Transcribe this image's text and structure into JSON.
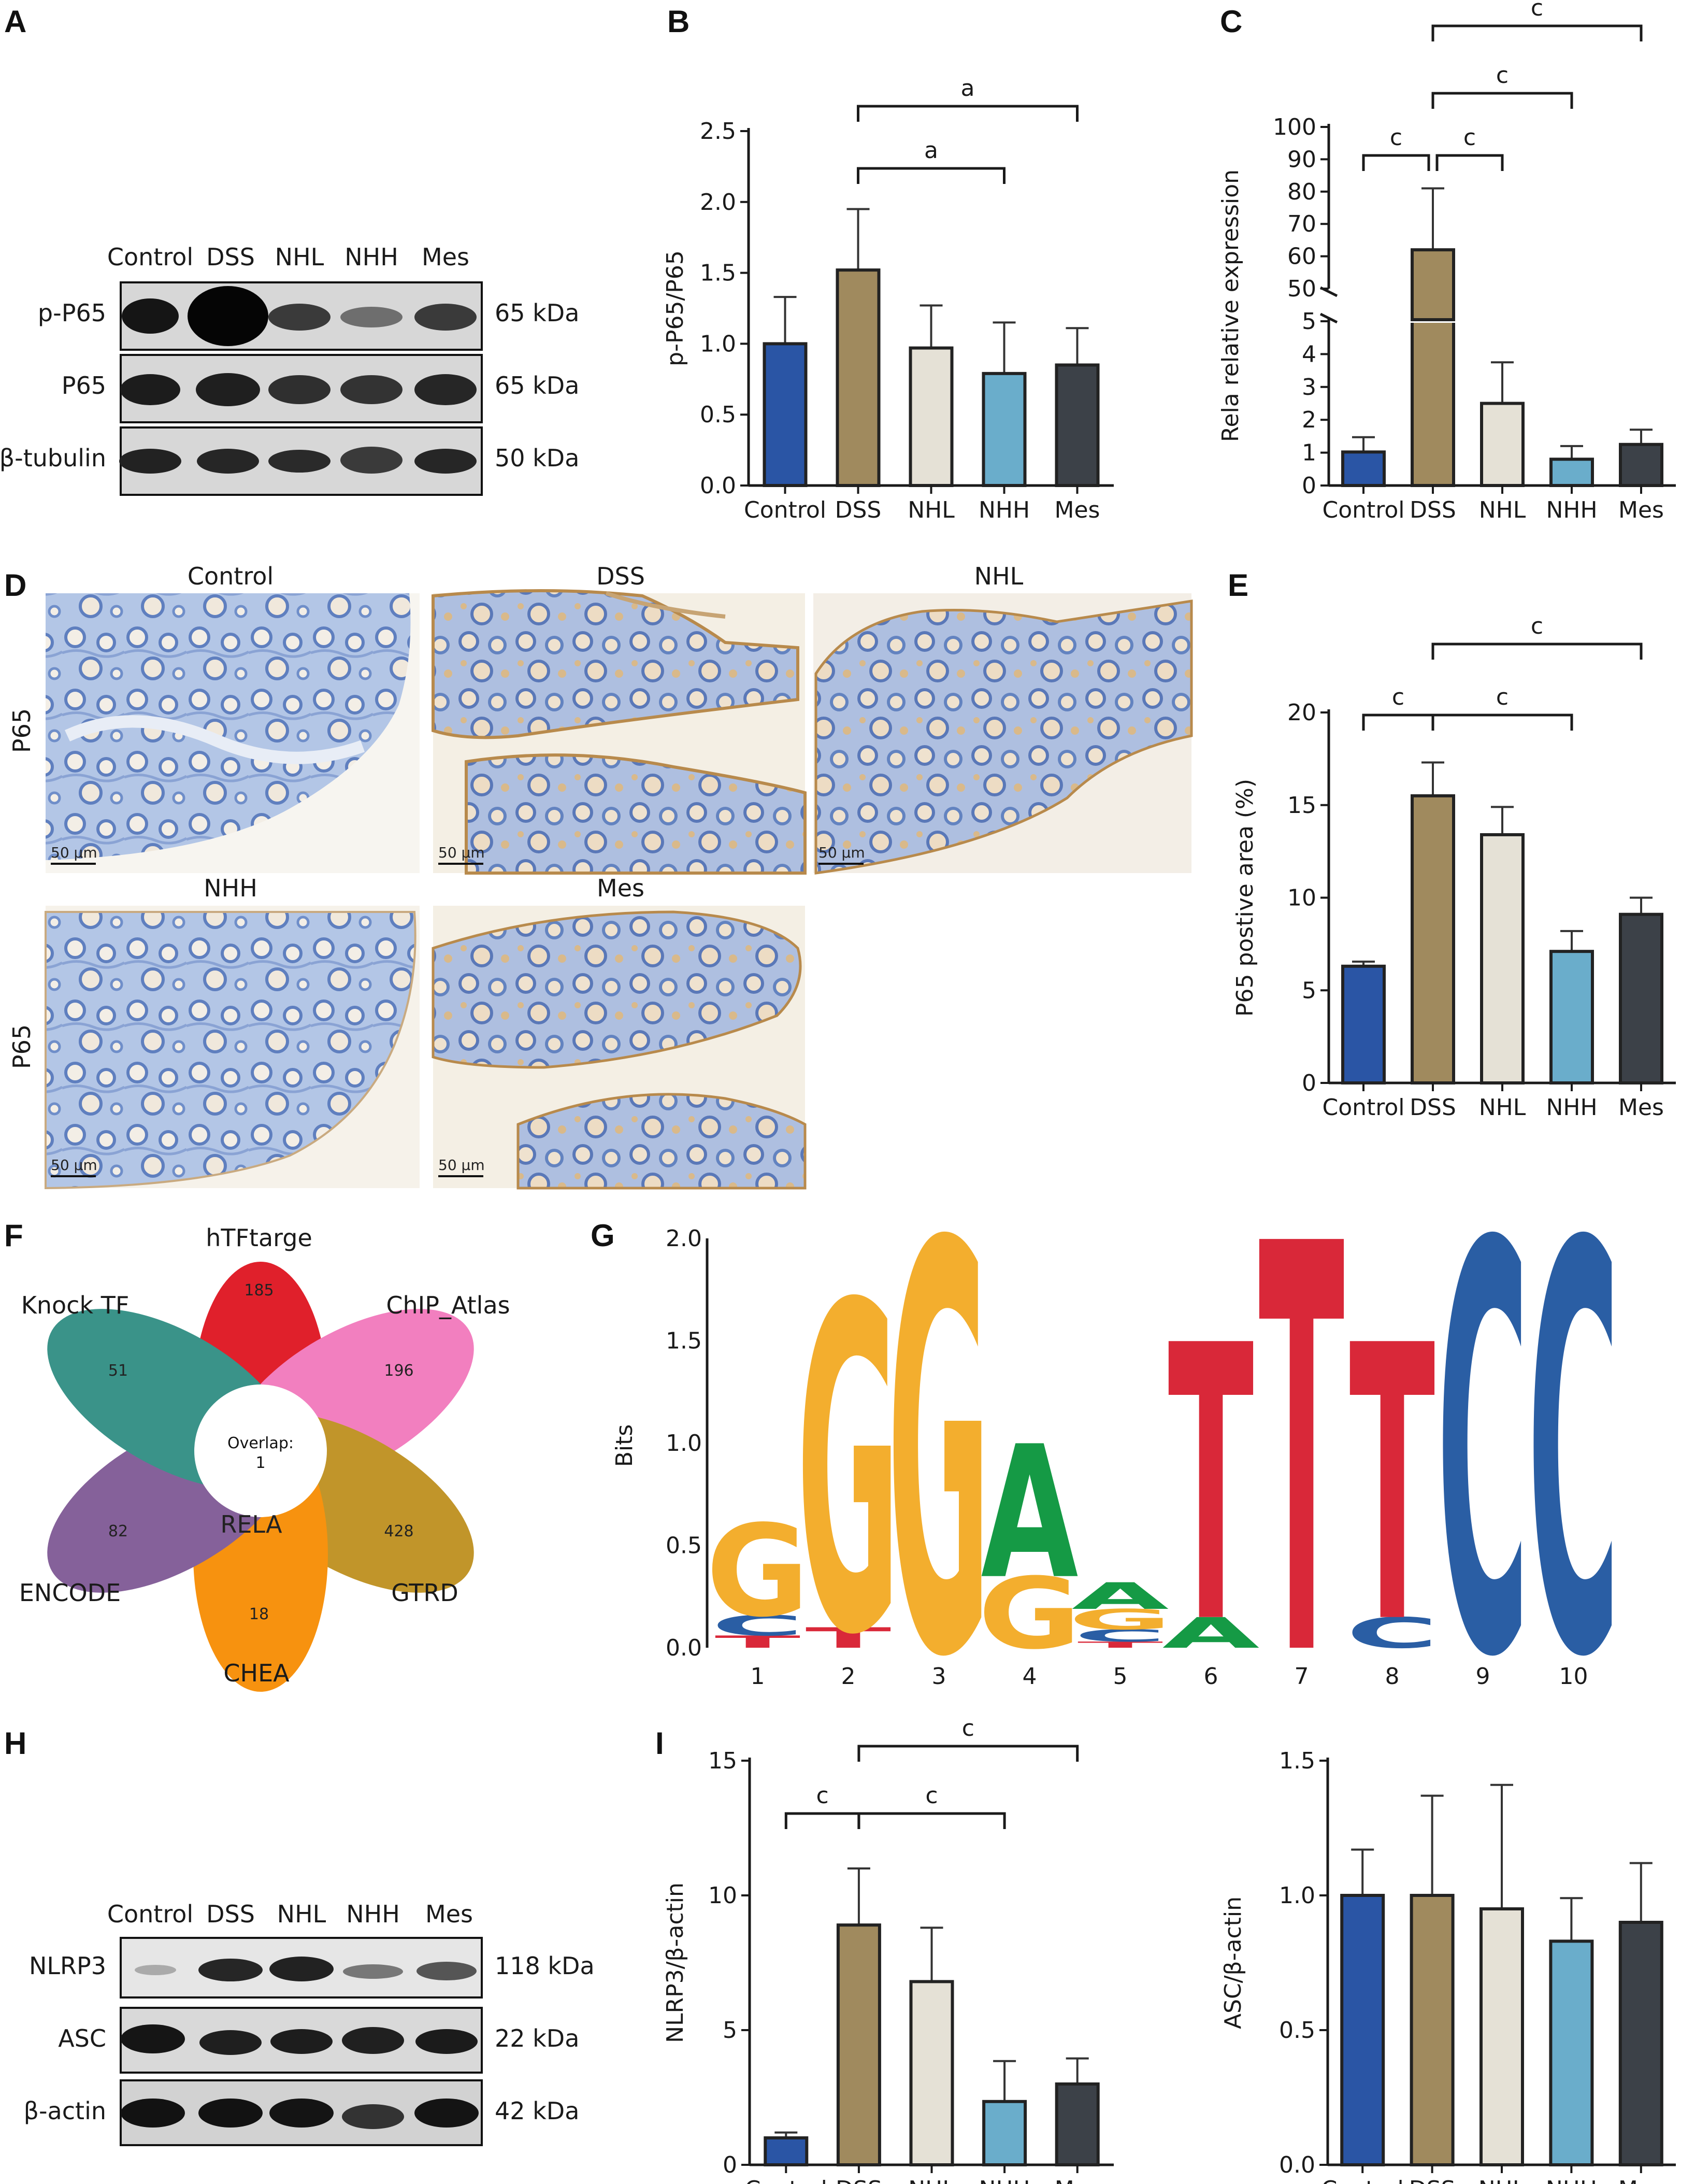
{
  "panels": {
    "A": "A",
    "B": "B",
    "C": "C",
    "D": "D",
    "E": "E",
    "F": "F",
    "G": "G",
    "H": "H",
    "I": "I"
  },
  "groups": [
    "Control",
    "DSS",
    "NHL",
    "NHH",
    "Mes"
  ],
  "colors": {
    "Control": "#2a55a5",
    "DSS": "#a08a5e",
    "NHL": "#e5e1d6",
    "NHH": "#6aadcb",
    "Mes": "#3c4148"
  },
  "blotA": {
    "lanes": [
      "Control",
      "DSS",
      "NHL",
      "NHH",
      "Mes"
    ],
    "rows": [
      {
        "name": "p-P65",
        "size": "65 kDa"
      },
      {
        "name": "P65",
        "size": "65 kDa"
      },
      {
        "name": "β-tubulin",
        "size": "50 kDa"
      }
    ]
  },
  "blotH": {
    "lanes": [
      "Control",
      "DSS",
      "NHL",
      "NHH",
      "Mes"
    ],
    "rows": [
      {
        "name": "NLRP3",
        "size": "118 kDa"
      },
      {
        "name": "ASC",
        "size": "22 kDa"
      },
      {
        "name": "β-actin",
        "size": "42 kDa"
      }
    ]
  },
  "histology": {
    "row_label": "P65",
    "scale_bar": "50 μm",
    "images": [
      "Control",
      "DSS",
      "NHL",
      "NHH",
      "Mes"
    ]
  },
  "venn": {
    "center_text": "Overlap:",
    "center_value": "1",
    "gene": "RELA",
    "sets": [
      {
        "name": "hTFtarge",
        "count": "185",
        "color": "#e0202b"
      },
      {
        "name": "ChIP_Atlas",
        "count": "196",
        "color": "#f27fbf"
      },
      {
        "name": "GTRD",
        "count": "428",
        "color": "#c1952a"
      },
      {
        "name": "CHEA",
        "count": "18",
        "color": "#f7920f"
      },
      {
        "name": "ENCODE",
        "count": "82",
        "color": "#85619a"
      },
      {
        "name": "Knock TF",
        "count": "51",
        "color": "#3a9389"
      }
    ]
  },
  "chart_data": [
    {
      "panel": "B",
      "type": "bar",
      "categories": [
        "Control",
        "DSS",
        "NHL",
        "NHH",
        "Mes"
      ],
      "values": [
        1.0,
        1.52,
        0.97,
        0.79,
        0.85
      ],
      "errors": [
        0.33,
        0.43,
        0.3,
        0.36,
        0.26
      ],
      "ylabel": "p-P65/P65",
      "ylim": [
        0,
        2.5
      ],
      "yticks": [
        "0.0",
        "0.5",
        "1.0",
        "1.5",
        "2.0",
        "2.5"
      ],
      "annotations": [
        {
          "from": "DSS",
          "to": "NHH",
          "label": "a"
        },
        {
          "from": "DSS",
          "to": "Mes",
          "label": "a"
        }
      ]
    },
    {
      "panel": "C",
      "type": "bar",
      "categories": [
        "Control",
        "DSS",
        "NHL",
        "NHH",
        "Mes"
      ],
      "values": [
        1.02,
        62.0,
        2.5,
        0.8,
        1.25
      ],
      "errors": [
        0.45,
        19.0,
        1.25,
        0.4,
        0.45
      ],
      "ylabel": "Rela relative expression",
      "broken_axis": {
        "lower": [
          0,
          5
        ],
        "upper": [
          50,
          100
        ]
      },
      "yticks_lower": [
        "0",
        "1",
        "2",
        "3",
        "4",
        "5"
      ],
      "yticks_upper": [
        "50",
        "60",
        "70",
        "80",
        "90",
        "100"
      ],
      "annotations": [
        {
          "from": "Control",
          "to": "DSS",
          "label": "c"
        },
        {
          "from": "DSS",
          "to": "NHL",
          "label": "c"
        },
        {
          "from": "DSS",
          "to": "NHH",
          "label": "c"
        },
        {
          "from": "DSS",
          "to": "Mes",
          "label": "c"
        }
      ]
    },
    {
      "panel": "E",
      "type": "bar",
      "categories": [
        "Control",
        "DSS",
        "NHL",
        "NHH",
        "Mes"
      ],
      "values": [
        6.3,
        15.5,
        13.4,
        7.1,
        9.1
      ],
      "errors": [
        0.25,
        1.8,
        1.5,
        1.1,
        0.9
      ],
      "ylabel": "P65 postive area (%)",
      "ylim": [
        0,
        20
      ],
      "yticks": [
        "0",
        "5",
        "10",
        "15",
        "20"
      ],
      "annotations": [
        {
          "from": "Control",
          "to": "DSS",
          "label": "c"
        },
        {
          "from": "DSS",
          "to": "NHH",
          "label": "c"
        },
        {
          "from": "DSS",
          "to": "Mes",
          "label": "c"
        }
      ]
    },
    {
      "panel": "G",
      "type": "sequence-logo",
      "ylabel": "Bits",
      "ylim": [
        0,
        2.0
      ],
      "yticks": [
        "0.0",
        "0.5",
        "1.0",
        "1.5",
        "2.0"
      ],
      "positions": [
        "1",
        "2",
        "3",
        "4",
        "5",
        "6",
        "7",
        "8",
        "9",
        "10"
      ],
      "columns": [
        [
          {
            "base": "T",
            "bits": 0.06
          },
          {
            "base": "C",
            "bits": 0.1
          },
          {
            "base": "G",
            "bits": 0.45
          }
        ],
        [
          {
            "base": "T",
            "bits": 0.1
          },
          {
            "base": "G",
            "bits": 1.6
          }
        ],
        [
          {
            "base": "G",
            "bits": 2.0
          }
        ],
        [
          {
            "base": "G",
            "bits": 0.35
          },
          {
            "base": "A",
            "bits": 0.65
          }
        ],
        [
          {
            "base": "T",
            "bits": 0.03
          },
          {
            "base": "C",
            "bits": 0.06
          },
          {
            "base": "G",
            "bits": 0.1
          },
          {
            "base": "A",
            "bits": 0.13
          }
        ],
        [
          {
            "base": "A",
            "bits": 0.15
          },
          {
            "base": "T",
            "bits": 1.35
          }
        ],
        [
          {
            "base": "T",
            "bits": 2.0
          }
        ],
        [
          {
            "base": "C",
            "bits": 0.15
          },
          {
            "base": "T",
            "bits": 1.35
          }
        ],
        [
          {
            "base": "C",
            "bits": 2.0
          }
        ],
        [
          {
            "base": "C",
            "bits": 2.0
          }
        ]
      ],
      "base_colors": {
        "A": "#159a45",
        "C": "#2a5ea4",
        "G": "#f3ae2e",
        "T": "#d92839"
      }
    },
    {
      "panel": "I-left",
      "type": "bar",
      "categories": [
        "Control",
        "DSS",
        "NHL",
        "NHH",
        "Mes"
      ],
      "values": [
        1.0,
        8.9,
        6.8,
        2.35,
        3.0
      ],
      "errors": [
        0.2,
        2.1,
        2.0,
        1.5,
        0.95
      ],
      "ylabel": "NLRP3/β-actin",
      "ylim": [
        0,
        15
      ],
      "yticks": [
        "0",
        "5",
        "10",
        "15"
      ],
      "annotations": [
        {
          "from": "Control",
          "to": "DSS",
          "label": "c"
        },
        {
          "from": "DSS",
          "to": "NHH",
          "label": "c"
        },
        {
          "from": "DSS",
          "to": "Mes",
          "label": "c"
        }
      ]
    },
    {
      "panel": "I-right",
      "type": "bar",
      "categories": [
        "Control",
        "DSS",
        "NHL",
        "NHH",
        "Mes"
      ],
      "values": [
        1.0,
        1.0,
        0.95,
        0.83,
        0.9
      ],
      "errors": [
        0.17,
        0.37,
        0.46,
        0.16,
        0.22
      ],
      "ylabel": "ASC/β-actin",
      "ylim": [
        0,
        1.5
      ],
      "yticks": [
        "0.0",
        "0.5",
        "1.0",
        "1.5"
      ],
      "annotations": []
    }
  ]
}
